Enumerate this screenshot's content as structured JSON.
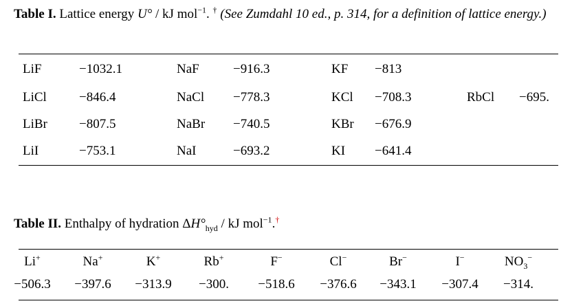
{
  "table1": {
    "label": "Table I.",
    "caption_a": "Lattice energy ",
    "symbol": "U°",
    "caption_b": " / kJ mol",
    "exponent": "−1",
    "dagger": "†",
    "note": "(See Zumdahl 10 ed., p. 314, for a definition of lattice energy.)",
    "rows": [
      [
        {
          "s": "LiF",
          "v": "−1032.1"
        },
        {
          "s": "NaF",
          "v": "−916.3"
        },
        {
          "s": "KF",
          "v": "−813"
        },
        {
          "s": "",
          "v": ""
        }
      ],
      [
        {
          "s": "LiCl",
          "v": "−846.4"
        },
        {
          "s": "NaCl",
          "v": "−778.3"
        },
        {
          "s": "KCl",
          "v": "−708.3"
        },
        {
          "s": "RbCl",
          "v": "−695."
        }
      ],
      [
        {
          "s": "LiBr",
          "v": "−807.5"
        },
        {
          "s": "NaBr",
          "v": "−740.5"
        },
        {
          "s": "KBr",
          "v": "−676.9"
        },
        {
          "s": "",
          "v": ""
        }
      ],
      [
        {
          "s": "LiI",
          "v": "−753.1"
        },
        {
          "s": "NaI",
          "v": "−693.2"
        },
        {
          "s": "KI",
          "v": "−641.4"
        },
        {
          "s": "",
          "v": ""
        }
      ]
    ]
  },
  "table2": {
    "label": "Table II.",
    "caption_a": "Enthalpy of hydration Δ",
    "symbol": "H°",
    "subscript": "hyd",
    "caption_b": " / kJ mol",
    "exponent": "−1",
    "period": ".",
    "dagger": "†",
    "ions": [
      {
        "base": "Li",
        "sup": "+",
        "sub": "",
        "value": "−506.3"
      },
      {
        "base": "Na",
        "sup": "+",
        "sub": "",
        "value": "−397.6"
      },
      {
        "base": "K",
        "sup": "+",
        "sub": "",
        "value": "−313.9"
      },
      {
        "base": "Rb",
        "sup": "+",
        "sub": "",
        "value": "−300."
      },
      {
        "base": "F",
        "sup": "−",
        "sub": "",
        "value": "−518.6"
      },
      {
        "base": "Cl",
        "sup": "−",
        "sub": "",
        "value": "−376.6"
      },
      {
        "base": "Br",
        "sup": "−",
        "sub": "",
        "value": "−343.1"
      },
      {
        "base": "I",
        "sup": "−",
        "sub": "",
        "value": "−307.4"
      },
      {
        "base": "NO",
        "sup": "−",
        "sub": "3",
        "value": "−314."
      }
    ]
  }
}
